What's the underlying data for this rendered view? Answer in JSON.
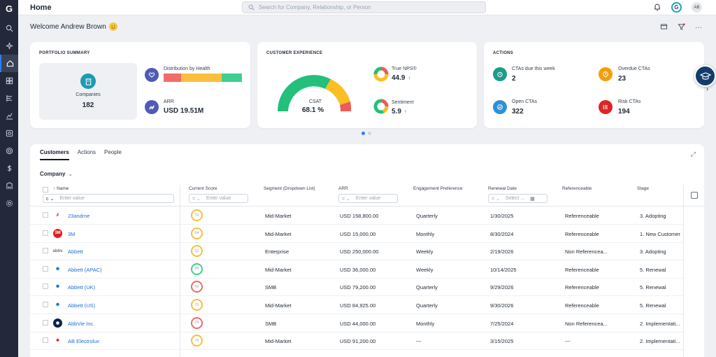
{
  "rail": {
    "logo": "G",
    "items": [
      {
        "icon": "search-icon"
      },
      {
        "icon": "sparkle-icon"
      },
      {
        "icon": "home-icon",
        "active": true
      },
      {
        "icon": "dashboard-icon"
      },
      {
        "icon": "timeline-icon"
      },
      {
        "icon": "analytics-icon"
      },
      {
        "icon": "camera-icon"
      },
      {
        "icon": "target-icon"
      },
      {
        "icon": "dollar-icon"
      },
      {
        "icon": "building-icon"
      },
      {
        "icon": "settings-icon"
      }
    ]
  },
  "topbar": {
    "title": "Home",
    "search_placeholder": "Search for Company, Relationship, or Person",
    "gs_badge": "G",
    "avatar_initials": "AB"
  },
  "welcome": "Welcome Andrew Brown",
  "portfolio": {
    "title": "PORTFOLIO SUMMARY",
    "companies_label": "Companies",
    "companies_value": "182",
    "distribution_label": "Distribution by Health",
    "health_segments": [
      {
        "fraction": 0.22,
        "color": "#f26b6b"
      },
      {
        "fraction": 0.52,
        "color": "#fbbf3f"
      },
      {
        "fraction": 0.26,
        "color": "#3ecf8e"
      }
    ],
    "arr_label": "ARR",
    "arr_value": "USD 19.51M"
  },
  "experience": {
    "title": "CUSTOMER EXPERIENCE",
    "csat_label": "CSAT",
    "csat_value": "68.1 %",
    "csat_fraction": 0.681,
    "nps_label": "True NPS®",
    "nps_value": "44.9",
    "nps_trend": "↑",
    "sentiment_label": "Sentiment",
    "sentiment_value": "5.9",
    "sentiment_trend": "↑"
  },
  "actions": {
    "title": "ACTIONS",
    "items": [
      {
        "label": "CTAs due this week",
        "value": "2",
        "color": "#1e9b8a"
      },
      {
        "label": "Overdue CTAs",
        "value": "23",
        "color": "#f59e0b"
      },
      {
        "label": "Open CTAs",
        "value": "322",
        "color": "#2f90d8"
      },
      {
        "label": "Risk CTAs",
        "value": "194",
        "color": "#dc2626"
      }
    ]
  },
  "table": {
    "tabs": [
      "Customers",
      "Actions",
      "People"
    ],
    "group_label": "Company",
    "columns": {
      "name": "Name",
      "score": "Current Score",
      "segment": "Segment (Dropdown List)",
      "arr": "ARR",
      "engagement": "Engagement Preference",
      "renewal": "Renewal Date",
      "referenceable": "Referenceable",
      "stage": "Stage"
    },
    "filter_placeholder": "Enter value",
    "date_placeholder": "Select ...",
    "rows": [
      {
        "name": "23andme",
        "score": "70",
        "score_color": "#fbbf3f",
        "segment": "Mid-Market",
        "arr": "USD 158,800.00",
        "engagement": "Quarterly",
        "renewal": "1/30/2025",
        "referenceable": "Referenceable",
        "stage": "3. Adopting",
        "logo_text": "✗",
        "logo_color": "#d32f2f",
        "logo_bg": "#ffffff"
      },
      {
        "name": "3M",
        "score": "64",
        "score_color": "#fbbf3f",
        "segment": "Mid-Market",
        "arr": "USD 15,000.00",
        "engagement": "Monthly",
        "renewal": "8/30/2024",
        "referenceable": "Referenceable",
        "stage": "1. New Customer",
        "logo_text": "3M",
        "logo_color": "#ffffff",
        "logo_bg": "#e11d1d"
      },
      {
        "name": "Abbett",
        "score": "52",
        "score_color": "#fbbf3f",
        "segment": "Enterprise",
        "arr": "USD 250,000.00",
        "engagement": "Weekly",
        "renewal": "2/19/2026",
        "referenceable": "Non Referencea...",
        "stage": "3. Adopting",
        "logo_text": "abbv",
        "logo_color": "#6b7280",
        "logo_bg": "#ffffff"
      },
      {
        "name": "Abbett (APAC)",
        "score": "84",
        "score_color": "#3ecf8e",
        "segment": "Mid-Market",
        "arr": "USD 36,000.00",
        "engagement": "Weekly",
        "renewal": "10/14/2025",
        "referenceable": "Referenceable",
        "stage": "5. Renewal",
        "logo_text": "✺",
        "logo_color": "#1f77b4",
        "logo_bg": "#ffffff"
      },
      {
        "name": "Abbett (UK)",
        "score": "49",
        "score_color": "#f26b6b",
        "segment": "SMB",
        "arr": "USD 79,200.00",
        "engagement": "Quarterly",
        "renewal": "9/29/2026",
        "referenceable": "Referenceable",
        "stage": "5. Renewal",
        "logo_text": "✺",
        "logo_color": "#1f77b4",
        "logo_bg": "#ffffff"
      },
      {
        "name": "Abbett (US)",
        "score": "70",
        "score_color": "#fbbf3f",
        "segment": "Mid-Market",
        "arr": "USD 84,925.00",
        "engagement": "Quarterly",
        "renewal": "9/30/2026",
        "referenceable": "Referenceable",
        "stage": "5. Renewal",
        "logo_text": "✺",
        "logo_color": "#1f77b4",
        "logo_bg": "#ffffff"
      },
      {
        "name": "AbbVie Inc.",
        "score": "29",
        "score_color": "#f26b6b",
        "segment": "SMB",
        "arr": "USD 44,000.00",
        "engagement": "Monthly",
        "renewal": "7/25/2024",
        "referenceable": "Non Referencea...",
        "stage": "2. Implementati...",
        "logo_text": "◉",
        "logo_color": "#ffffff",
        "logo_bg": "#0b2545"
      },
      {
        "name": "AB Electrolux",
        "score": "70",
        "score_color": "#fbbf3f",
        "segment": "Mid-Market",
        "arr": "USD 91,200.00",
        "engagement": "---",
        "renewal": "3/15/2025",
        "referenceable": "---",
        "stage": "2. Implementati...",
        "logo_text": "✱",
        "logo_color": "#dc2626",
        "logo_bg": "#ffffff"
      }
    ]
  },
  "colors": {
    "accent": "#2f80ed",
    "rail": "#23293a",
    "link": "#1d6ed8"
  }
}
